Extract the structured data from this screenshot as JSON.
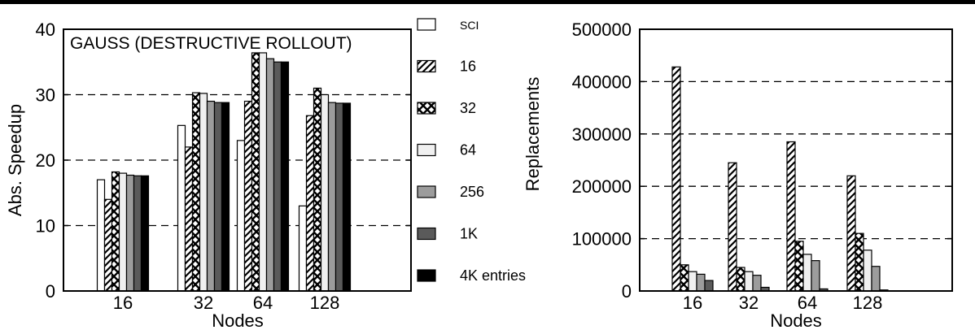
{
  "chart_data": [
    {
      "type": "bar",
      "title": "GAUSS (DESTRUCTIVE ROLLOUT)",
      "xlabel": "Nodes",
      "ylabel": "Abs. Speedup",
      "categories": [
        "16",
        "32",
        "64",
        "128"
      ],
      "ylim": [
        0,
        40
      ],
      "yticks": [
        0,
        10,
        20,
        30,
        40
      ],
      "grid": "horizontal dashed",
      "series": [
        {
          "name": "SCI",
          "pattern": "white",
          "values": [
            17,
            25.3,
            23,
            13
          ]
        },
        {
          "name": "16",
          "pattern": "hatch",
          "values": [
            14,
            22,
            29,
            26.8
          ]
        },
        {
          "name": "32",
          "pattern": "cross",
          "values": [
            18.2,
            30.3,
            36.4,
            31
          ]
        },
        {
          "name": "64",
          "pattern": "light",
          "values": [
            18,
            30.2,
            36.4,
            30
          ]
        },
        {
          "name": "256",
          "pattern": "gray",
          "values": [
            17.7,
            29,
            35.5,
            28.8
          ]
        },
        {
          "name": "1K",
          "pattern": "dark",
          "values": [
            17.6,
            28.8,
            35,
            28.7
          ]
        },
        {
          "name": "4K entries",
          "pattern": "black",
          "values": [
            17.6,
            28.8,
            35,
            28.7
          ]
        }
      ]
    },
    {
      "type": "bar",
      "title": "",
      "xlabel": "Nodes",
      "ylabel": "Replacements",
      "categories": [
        "16",
        "32",
        "64",
        "128"
      ],
      "ylim": [
        0,
        500000
      ],
      "yticks": [
        0,
        100000,
        200000,
        300000,
        400000,
        500000
      ],
      "grid": "horizontal dashed",
      "series": [
        {
          "name": "16",
          "pattern": "hatch",
          "values": [
            428000,
            245000,
            285000,
            220000
          ]
        },
        {
          "name": "32",
          "pattern": "cross",
          "values": [
            50000,
            45000,
            95000,
            110000
          ]
        },
        {
          "name": "64",
          "pattern": "light",
          "values": [
            37000,
            37000,
            70000,
            78000
          ]
        },
        {
          "name": "256",
          "pattern": "gray",
          "values": [
            32000,
            30000,
            58000,
            47000
          ]
        },
        {
          "name": "1K",
          "pattern": "dark",
          "values": [
            20000,
            7000,
            4000,
            2000
          ]
        }
      ]
    }
  ],
  "legend": {
    "placement": "between charts",
    "items": [
      {
        "label": "SCI",
        "pattern": "white"
      },
      {
        "label": "16",
        "pattern": "hatch"
      },
      {
        "label": "32",
        "pattern": "cross"
      },
      {
        "label": "64",
        "pattern": "light"
      },
      {
        "label": "256",
        "pattern": "gray"
      },
      {
        "label": "1K",
        "pattern": "dark"
      },
      {
        "label": "4K entries",
        "pattern": "black"
      }
    ]
  }
}
